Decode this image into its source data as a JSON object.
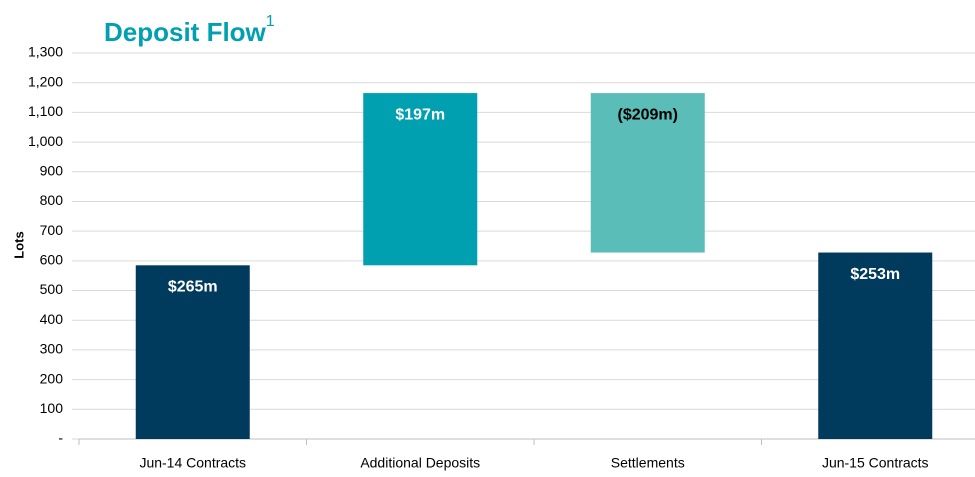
{
  "chart_data": {
    "type": "waterfall",
    "title": "Deposit Flow",
    "title_superscript": "1",
    "y_label": "Lots",
    "categories": [
      "Jun-14 Contracts",
      "Additional Deposits",
      "Settlements",
      "Jun-15 Contracts"
    ],
    "values": [
      585,
      580,
      -537,
      628
    ],
    "totals": [
      true,
      false,
      false,
      true
    ],
    "bar_labels": [
      "$265m",
      "$197m",
      "($209m)",
      "$253m"
    ],
    "colors": [
      "#003a5c",
      "#00a0b0",
      "#5bbdb8",
      "#003a5c"
    ],
    "label_colors": [
      "#ffffff",
      "#ffffff",
      "#000000",
      "#ffffff"
    ],
    "ylim": [
      0,
      1300
    ],
    "yticks": [
      {
        "value": 0,
        "label": "-"
      },
      100,
      200,
      300,
      400,
      500,
      600,
      700,
      800,
      900,
      {
        "value": 1000,
        "label": "1,000"
      },
      {
        "value": 1100,
        "label": "1,100"
      },
      {
        "value": 1200,
        "label": "1,200"
      },
      {
        "value": 1300,
        "label": "1,300"
      }
    ],
    "grid": true
  }
}
